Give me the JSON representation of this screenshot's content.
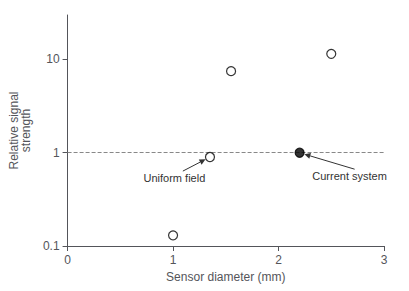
{
  "chart_data": {
    "type": "scatter",
    "xlabel": "Sensor diameter (mm)",
    "ylabel": "Relative signal\nstrength",
    "log": "y",
    "grid": false,
    "xlim": [
      0,
      3
    ],
    "xticks": [
      0,
      1,
      2,
      3
    ],
    "ylim": [
      0.1,
      30
    ],
    "yticks": [
      0.1,
      1,
      10
    ],
    "series": [
      {
        "x": [
          1.0,
          1.35,
          1.55,
          2.5
        ],
        "values": [
          0.13,
          0.9,
          7.5,
          11.5
        ],
        "color": "#000000",
        "marker": "open_circle"
      },
      {
        "x": [
          2.2
        ],
        "values": [
          1.0
        ],
        "color": "#000000",
        "marker": "circle"
      }
    ],
    "reference_line": {
      "value": 1.0,
      "color": "#888888",
      "line_style": "dashed"
    },
    "annotations": [
      {
        "text": "Uniform field",
        "xy": [
          1.35,
          0.9
        ],
        "xytext": [
          0.72,
          0.62
        ]
      },
      {
        "text": "Current system",
        "xy": [
          2.2,
          1.0
        ],
        "xytext": [
          2.32,
          0.65
        ]
      }
    ]
  }
}
